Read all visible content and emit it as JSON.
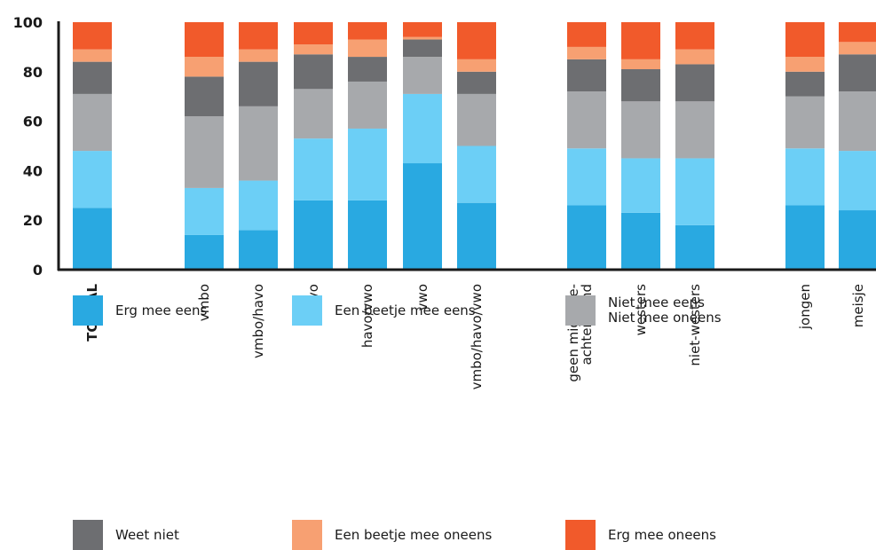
{
  "chart_data": {
    "type": "bar",
    "stacked": true,
    "title": "",
    "xlabel": "",
    "ylabel": "",
    "ylim": [
      0,
      100
    ],
    "yticks": [
      0,
      20,
      40,
      60,
      80,
      100
    ],
    "grid": false,
    "legend_position": "bottom",
    "categories": [
      "TOTAAL",
      "vmbo",
      "vmbo/havo",
      "havo",
      "havo/vwo",
      "vwo",
      "vmbo/havo/vwo",
      "geen migratie-\nachtergrond",
      "westers",
      "niet-westers",
      "jongen",
      "meisje"
    ],
    "groups": [
      [
        0
      ],
      [
        1,
        2,
        3,
        4,
        5,
        6
      ],
      [
        7,
        8,
        9
      ],
      [
        10,
        11
      ]
    ],
    "series": [
      {
        "name": "Erg mee eens",
        "color": "#29a9e1",
        "values": [
          25,
          14,
          16,
          28,
          28,
          43,
          27,
          26,
          23,
          18,
          26,
          24
        ]
      },
      {
        "name": "Een beetje mee eens",
        "color": "#6ccff6",
        "values": [
          23,
          19,
          20,
          25,
          29,
          28,
          23,
          23,
          22,
          27,
          23,
          24
        ]
      },
      {
        "name": "Niet mee eens\nNiet mee oneens",
        "color": "#a7a9ac",
        "values": [
          23,
          29,
          30,
          20,
          19,
          15,
          21,
          23,
          23,
          23,
          21,
          24
        ]
      },
      {
        "name": "Weet niet",
        "color": "#6d6e71",
        "values": [
          13,
          16,
          18,
          14,
          10,
          7,
          9,
          13,
          13,
          15,
          10,
          15
        ]
      },
      {
        "name": "Een beetje mee oneens",
        "color": "#f7a072",
        "values": [
          5,
          8,
          5,
          4,
          7,
          1,
          5,
          5,
          4,
          6,
          6,
          5
        ]
      },
      {
        "name": "Erg mee oneens",
        "color": "#f15a2b",
        "values": [
          11,
          14,
          11,
          9,
          7,
          6,
          15,
          10,
          15,
          11,
          14,
          8
        ]
      }
    ]
  }
}
